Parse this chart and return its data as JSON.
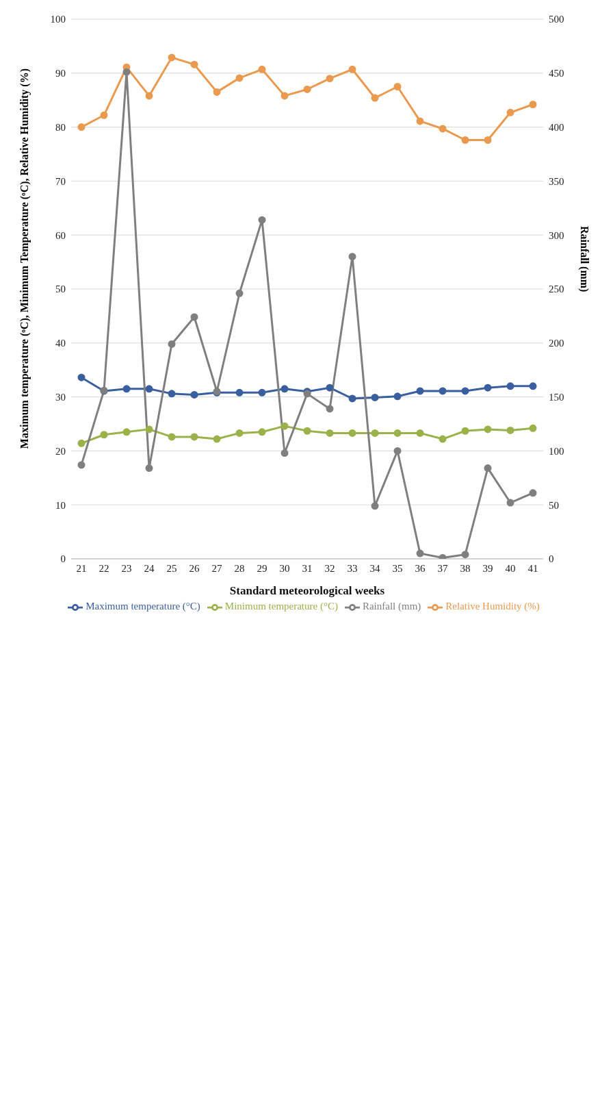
{
  "chart_data": {
    "type": "line",
    "xlabel": "Standard meteorological weeks",
    "ylabel": "Maximum temperature (ᵒC), Minimum Temperature (ᵒC), Relative Humidity (%)",
    "y2label": "Rainfall (mm)",
    "categories": [
      "21",
      "22",
      "23",
      "24",
      "25",
      "26",
      "27",
      "28",
      "29",
      "30",
      "31",
      "32",
      "33",
      "34",
      "35",
      "36",
      "37",
      "38",
      "39",
      "40",
      "41"
    ],
    "series": [
      {
        "name": "Maximum temperature (°C)",
        "color": "#3a5f9e",
        "values": [
          33.6,
          31.1,
          31.5,
          31.5,
          30.6,
          30.4,
          30.8,
          30.8,
          30.8,
          31.5,
          31.0,
          31.7,
          29.7,
          29.9,
          30.1,
          31.1,
          31.1,
          31.1,
          31.7,
          32.0,
          32.0
        ]
      },
      {
        "name": "Minimum temperature (°C)",
        "color": "#9bb14a",
        "values": [
          21.4,
          23.0,
          23.5,
          24.0,
          22.6,
          22.6,
          22.2,
          23.3,
          23.5,
          24.6,
          23.7,
          23.3,
          23.3,
          23.3,
          23.3,
          23.3,
          22.2,
          23.7,
          24.0,
          23.8,
          24.2
        ]
      },
      {
        "name": "Relative Humidity (%)",
        "color": "#ea9a4f",
        "values": [
          80.0,
          82.2,
          91.1,
          85.8,
          92.9,
          91.6,
          86.5,
          89.1,
          90.7,
          85.8,
          87.0,
          89.0,
          90.7,
          85.4,
          87.5,
          81.1,
          79.7,
          77.6,
          77.6,
          82.7,
          84.2
        ]
      },
      {
        "name": "Rainfall (mm)",
        "color": "#7f7f7f",
        "axis": "y2",
        "values": [
          87,
          156,
          451,
          84,
          199,
          224,
          155,
          246,
          314,
          98,
          153,
          139,
          280,
          49,
          100,
          5,
          1,
          4,
          84,
          52,
          61
        ]
      }
    ],
    "ylim": [
      0,
      100
    ],
    "yticks": [
      0,
      10,
      20,
      30,
      40,
      50,
      60,
      70,
      80,
      90,
      100
    ],
    "y2lim": [
      0,
      500
    ],
    "y2ticks": [
      0,
      50,
      100,
      150,
      200,
      250,
      300,
      350,
      400,
      450,
      500
    ],
    "grid": "y",
    "legend": "bottom",
    "marker": "circle",
    "line_style": "solid"
  }
}
